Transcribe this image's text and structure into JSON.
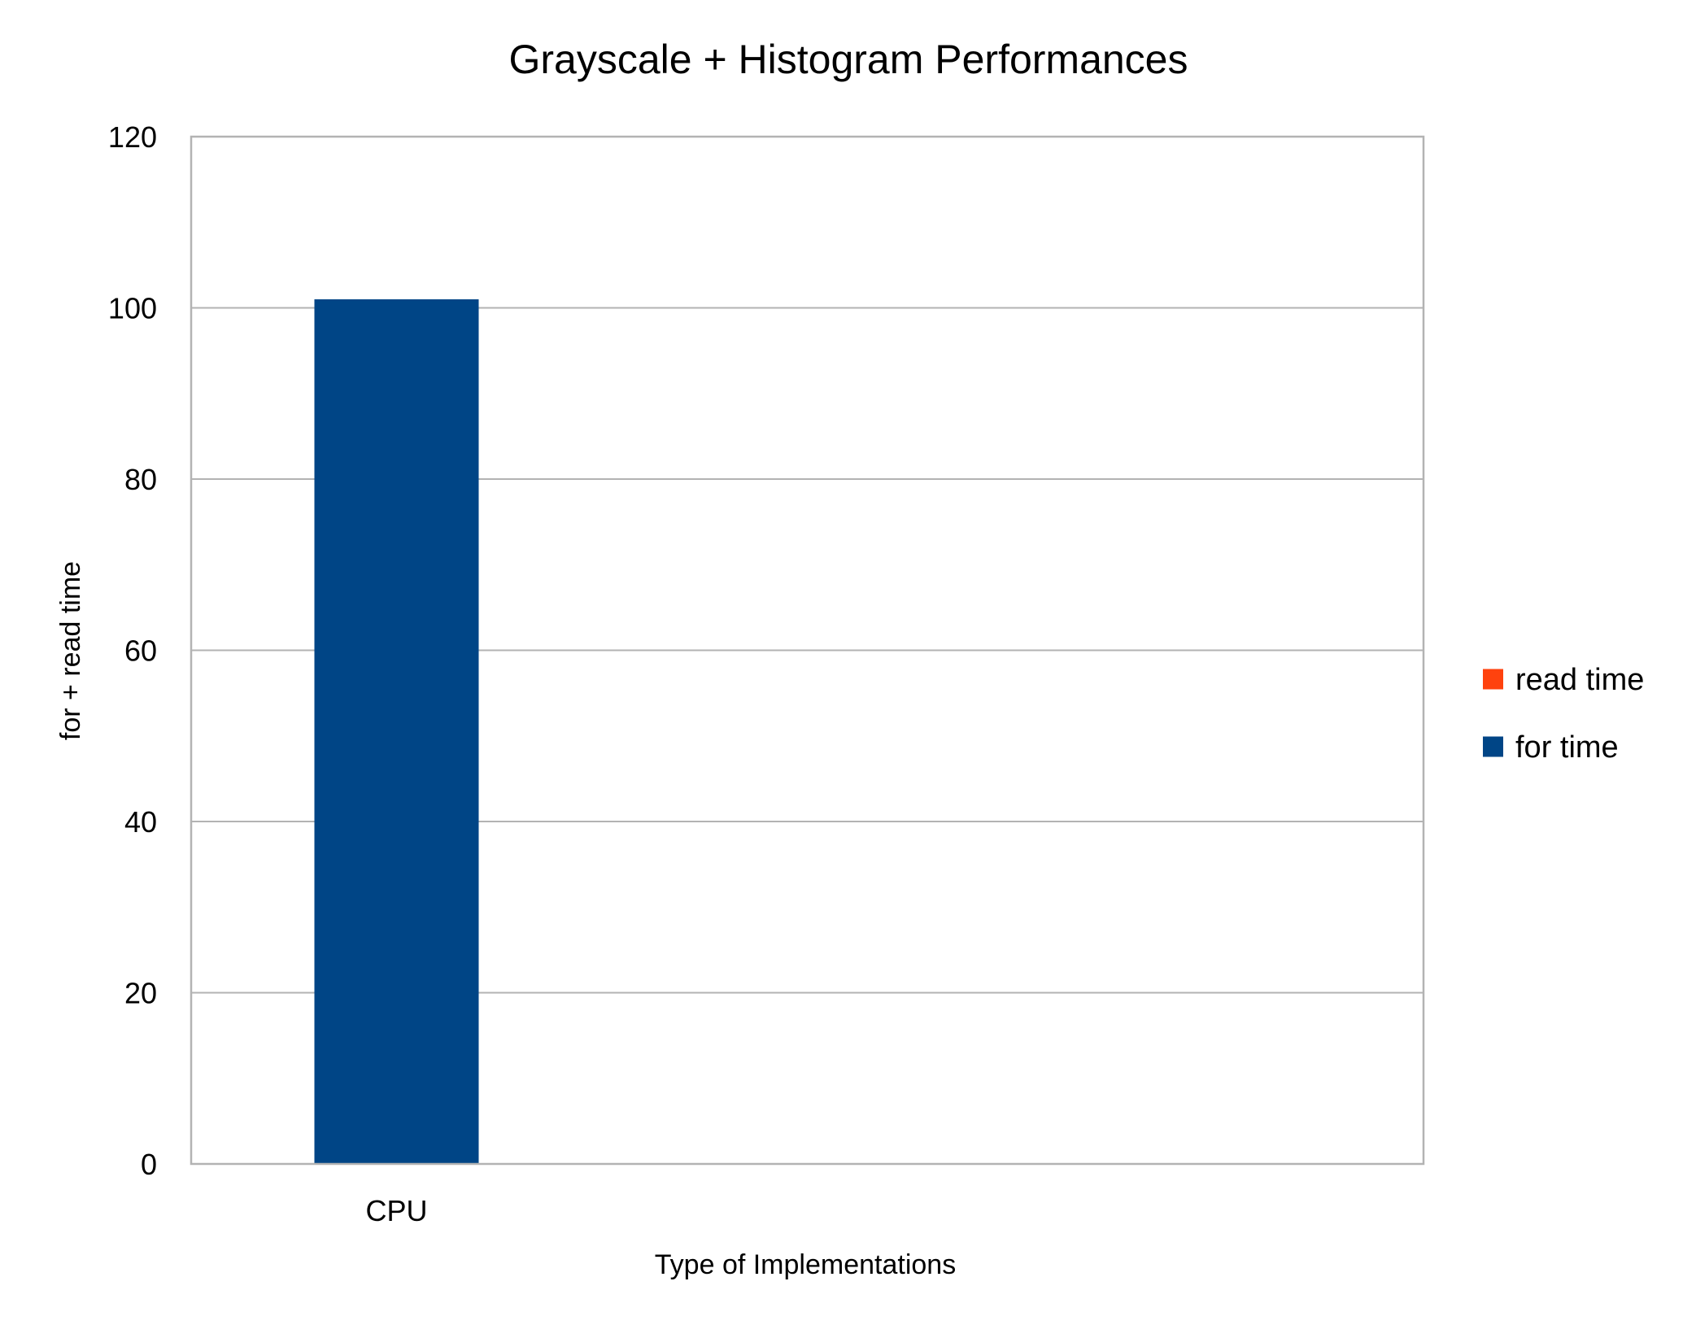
{
  "chart_data": {
    "type": "bar",
    "stacked": true,
    "title": "Grayscale + Histogram Performances",
    "xlabel": "Type of Implementations",
    "ylabel": "for + read time",
    "categories": [
      "CPU"
    ],
    "series": [
      {
        "name": "for time",
        "values": [
          101
        ],
        "color": "#004586"
      },
      {
        "name": "read time",
        "values": [
          0
        ],
        "color": "#ff420e"
      }
    ],
    "ylim": [
      0,
      120
    ],
    "yticks": [
      0,
      20,
      40,
      60,
      80,
      100,
      120
    ],
    "grid": true,
    "legend_position": "right",
    "legend_order": [
      "read time",
      "for time"
    ],
    "colors": {
      "gridline": "#b3b3b3",
      "axis": "#b3b3b3"
    }
  }
}
